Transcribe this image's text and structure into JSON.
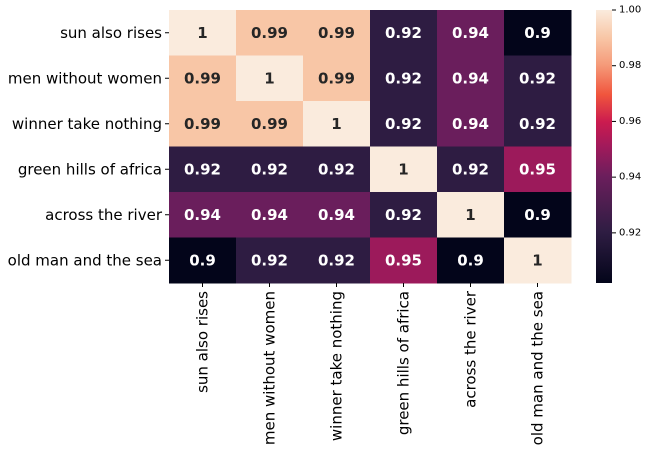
{
  "chart_data": {
    "type": "heatmap",
    "title": "",
    "xlabel": "",
    "ylabel": "",
    "categories_x": [
      "sun also rises",
      "men without women",
      "winner take nothing",
      "green hills of africa",
      "across the river",
      "old man and the sea"
    ],
    "categories_y": [
      "sun also rises",
      "men without women",
      "winner take nothing",
      "green hills of africa",
      "across the river",
      "old man and the sea"
    ],
    "values": [
      [
        1.0,
        0.99,
        0.99,
        0.92,
        0.94,
        0.9
      ],
      [
        0.99,
        1.0,
        0.99,
        0.92,
        0.94,
        0.92
      ],
      [
        0.99,
        0.99,
        1.0,
        0.92,
        0.94,
        0.92
      ],
      [
        0.92,
        0.92,
        0.92,
        1.0,
        0.92,
        0.95
      ],
      [
        0.94,
        0.94,
        0.94,
        0.92,
        1.0,
        0.9
      ],
      [
        0.9,
        0.92,
        0.92,
        0.95,
        0.9,
        1.0
      ]
    ],
    "annotations": [
      [
        "1",
        "0.99",
        "0.99",
        "0.92",
        "0.94",
        "0.9"
      ],
      [
        "0.99",
        "1",
        "0.99",
        "0.92",
        "0.94",
        "0.92"
      ],
      [
        "0.99",
        "0.99",
        "1",
        "0.92",
        "0.94",
        "0.92"
      ],
      [
        "0.92",
        "0.92",
        "0.92",
        "1",
        "0.92",
        "0.95"
      ],
      [
        "0.94",
        "0.94",
        "0.94",
        "0.92",
        "1",
        "0.9"
      ],
      [
        "0.9",
        "0.92",
        "0.92",
        "0.95",
        "0.9",
        "1"
      ]
    ],
    "colorbar": {
      "range": [
        0.902,
        1.0
      ],
      "ticks": [
        0.92,
        0.94,
        0.96,
        0.98,
        1.0
      ],
      "tick_labels": [
        "0.92",
        "0.94",
        "0.96",
        "0.98",
        "1.00"
      ],
      "colormap": "rocket"
    },
    "grid": false,
    "colors": {
      "light_text": "#ffffff",
      "dark_text": "#262626"
    }
  }
}
